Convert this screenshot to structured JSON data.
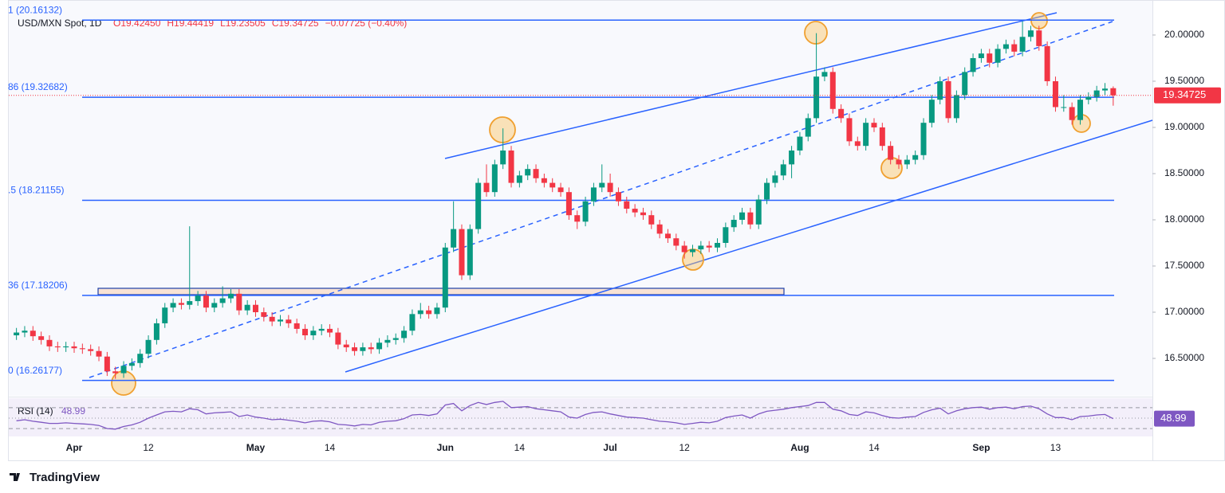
{
  "chart_data": {
    "type": "candlestick",
    "title": "USD/MXN Spot, 1D",
    "legend_labels": [
      "O19.42450",
      "H19.44419",
      "L19.23505",
      "C19.34725",
      "−0.07725 (−0.40%)"
    ],
    "last_price_label": "19.34725",
    "brand": "TradingView",
    "up_color": "#089981",
    "down_color": "#f23645",
    "categories": [
      null,
      null,
      null,
      null,
      null,
      null,
      null,
      "Apr",
      null,
      null,
      null,
      null,
      null,
      null,
      null,
      null,
      "12",
      null,
      null,
      null,
      null,
      null,
      null,
      null,
      null,
      null,
      null,
      null,
      null,
      "May",
      null,
      null,
      null,
      null,
      null,
      null,
      null,
      null,
      "14",
      null,
      null,
      null,
      null,
      null,
      null,
      null,
      null,
      null,
      null,
      null,
      null,
      null,
      "Jun",
      null,
      null,
      null,
      null,
      null,
      null,
      null,
      null,
      "14",
      null,
      null,
      null,
      null,
      null,
      null,
      null,
      null,
      null,
      null,
      "Jul",
      null,
      null,
      null,
      null,
      null,
      null,
      null,
      null,
      "12",
      null,
      null,
      null,
      null,
      null,
      null,
      null,
      null,
      null,
      null,
      null,
      null,
      null,
      "Aug",
      null,
      null,
      null,
      null,
      null,
      null,
      null,
      null,
      "14",
      null,
      null,
      null,
      null,
      null,
      null,
      null,
      null,
      null,
      null,
      null,
      null,
      "Sep",
      null,
      null,
      null,
      null,
      null,
      null,
      null,
      null,
      "13",
      null,
      null,
      null,
      null,
      null,
      null,
      null
    ],
    "open": [
      16.75,
      16.78,
      16.8,
      16.74,
      16.7,
      16.63,
      16.62,
      16.63,
      16.61,
      16.6,
      16.58,
      16.52,
      16.36,
      16.34,
      16.42,
      16.45,
      16.55,
      16.7,
      16.88,
      17.05,
      17.1,
      17.08,
      17.12,
      17.18,
      17.05,
      17.1,
      17.15,
      17.2,
      17.02,
      17.08,
      17.0,
      16.95,
      16.9,
      16.92,
      16.88,
      16.82,
      16.75,
      16.8,
      16.82,
      16.78,
      16.65,
      16.62,
      16.58,
      16.62,
      16.6,
      16.67,
      16.7,
      16.72,
      16.8,
      16.98,
      17.02,
      16.98,
      17.05,
      17.7,
      17.9,
      17.4,
      17.9,
      18.4,
      18.3,
      18.6,
      18.75,
      18.4,
      18.48,
      18.55,
      18.45,
      18.4,
      18.35,
      18.3,
      18.05,
      17.98,
      18.2,
      18.35,
      18.4,
      18.3,
      18.2,
      18.12,
      18.08,
      18.05,
      17.95,
      17.85,
      17.8,
      17.72,
      17.65,
      17.68,
      17.72,
      17.7,
      17.75,
      17.92,
      18.0,
      18.08,
      17.95,
      18.22,
      18.4,
      18.48,
      18.6,
      18.75,
      18.9,
      19.1,
      19.55,
      19.6,
      19.2,
      19.1,
      18.85,
      18.8,
      19.05,
      19.0,
      18.8,
      18.65,
      18.6,
      18.65,
      18.7,
      19.05,
      19.3,
      19.5,
      19.1,
      19.35,
      19.6,
      19.75,
      19.8,
      19.7,
      19.85,
      19.9,
      19.82,
      19.98,
      20.05,
      19.88,
      19.5,
      19.22,
      19.22,
      19.08,
      19.3,
      19.33,
      19.4,
      19.4245
    ],
    "high": [
      16.83,
      16.85,
      16.85,
      16.79,
      16.75,
      16.68,
      16.68,
      16.68,
      16.66,
      16.65,
      16.63,
      16.57,
      16.41,
      16.47,
      16.5,
      16.6,
      16.75,
      16.93,
      17.1,
      17.15,
      17.15,
      17.93,
      17.23,
      17.23,
      17.15,
      17.28,
      17.25,
      17.25,
      17.13,
      17.13,
      17.05,
      17.0,
      16.97,
      16.97,
      16.93,
      16.87,
      16.85,
      16.87,
      16.87,
      16.83,
      16.7,
      16.67,
      16.67,
      16.67,
      16.72,
      16.75,
      16.77,
      16.85,
      17.03,
      17.1,
      17.07,
      17.1,
      17.75,
      18.2,
      17.95,
      17.95,
      18.45,
      18.6,
      18.65,
      18.99,
      18.8,
      18.53,
      18.6,
      18.6,
      18.5,
      18.45,
      18.4,
      18.35,
      18.1,
      18.25,
      18.4,
      18.6,
      18.5,
      18.35,
      18.25,
      18.17,
      18.13,
      18.1,
      18.0,
      17.9,
      17.85,
      17.77,
      17.73,
      17.77,
      17.77,
      17.8,
      17.97,
      18.05,
      18.13,
      18.13,
      18.27,
      18.45,
      18.53,
      18.65,
      18.8,
      18.95,
      19.15,
      20.02,
      19.65,
      19.65,
      19.25,
      19.15,
      18.9,
      19.1,
      19.1,
      19.05,
      18.85,
      18.7,
      18.7,
      18.75,
      19.1,
      19.35,
      19.55,
      19.55,
      19.4,
      19.65,
      19.8,
      19.85,
      19.85,
      19.9,
      19.95,
      19.95,
      20.15,
      20.1,
      20.1,
      19.93,
      19.55,
      19.35,
      19.27,
      19.35,
      19.38,
      19.45,
      19.48,
      19.44419
    ],
    "low": [
      16.7,
      16.73,
      16.69,
      16.65,
      16.58,
      16.57,
      16.57,
      16.56,
      16.55,
      16.53,
      16.47,
      16.31,
      16.28,
      16.29,
      16.37,
      16.4,
      16.5,
      16.65,
      16.83,
      17.0,
      17.03,
      17.03,
      17.07,
      17.0,
      17.0,
      17.05,
      17.1,
      16.97,
      16.97,
      16.95,
      16.9,
      16.85,
      16.85,
      16.83,
      16.77,
      16.7,
      16.7,
      16.75,
      16.73,
      16.6,
      16.57,
      16.53,
      16.53,
      16.55,
      16.55,
      16.62,
      16.65,
      16.67,
      16.75,
      16.93,
      16.93,
      16.93,
      17.0,
      17.65,
      17.35,
      17.35,
      17.85,
      18.25,
      18.25,
      18.55,
      18.35,
      18.35,
      18.43,
      18.4,
      18.35,
      18.3,
      18.25,
      18.0,
      17.9,
      17.93,
      18.15,
      18.3,
      18.25,
      18.15,
      18.07,
      18.03,
      18.0,
      17.9,
      17.8,
      17.75,
      17.67,
      17.58,
      17.6,
      17.63,
      17.65,
      17.65,
      17.7,
      17.87,
      17.95,
      17.9,
      17.9,
      18.17,
      18.35,
      18.43,
      18.45,
      18.7,
      18.85,
      19.05,
      19.5,
      19.15,
      19.05,
      18.8,
      18.75,
      18.75,
      18.95,
      18.75,
      18.6,
      18.55,
      18.55,
      18.6,
      18.65,
      19.0,
      19.25,
      19.05,
      19.05,
      19.3,
      19.55,
      19.7,
      19.65,
      19.65,
      19.8,
      19.77,
      19.77,
      19.93,
      19.83,
      19.45,
      19.17,
      19.17,
      19.03,
      19.03,
      19.25,
      19.28,
      19.35,
      19.23505
    ],
    "close": [
      16.78,
      16.8,
      16.74,
      16.7,
      16.63,
      16.62,
      16.63,
      16.61,
      16.6,
      16.58,
      16.52,
      16.36,
      16.34,
      16.42,
      16.45,
      16.55,
      16.7,
      16.88,
      17.05,
      17.1,
      17.08,
      17.12,
      17.18,
      17.05,
      17.1,
      17.15,
      17.2,
      17.02,
      17.08,
      17.0,
      16.95,
      16.9,
      16.92,
      16.88,
      16.82,
      16.75,
      16.8,
      16.82,
      16.78,
      16.65,
      16.62,
      16.58,
      16.62,
      16.6,
      16.67,
      16.7,
      16.72,
      16.8,
      16.98,
      17.02,
      16.98,
      17.05,
      17.7,
      17.9,
      17.4,
      17.9,
      18.4,
      18.3,
      18.6,
      18.75,
      18.4,
      18.48,
      18.55,
      18.45,
      18.4,
      18.35,
      18.3,
      18.05,
      17.98,
      18.2,
      18.35,
      18.4,
      18.3,
      18.2,
      18.12,
      18.08,
      18.05,
      17.95,
      17.85,
      17.8,
      17.72,
      17.65,
      17.68,
      17.72,
      17.7,
      17.75,
      17.92,
      18.0,
      18.08,
      17.95,
      18.22,
      18.4,
      18.48,
      18.6,
      18.75,
      18.9,
      19.1,
      19.55,
      19.6,
      19.2,
      19.1,
      18.85,
      18.8,
      19.05,
      19.0,
      18.8,
      18.65,
      18.6,
      18.65,
      18.7,
      19.05,
      19.3,
      19.5,
      19.1,
      19.35,
      19.6,
      19.75,
      19.8,
      19.7,
      19.85,
      19.9,
      19.82,
      19.98,
      20.05,
      19.88,
      19.5,
      19.22,
      19.22,
      19.08,
      19.3,
      19.33,
      19.4,
      19.42,
      19.34725
    ],
    "ylim": [
      16.095,
      20.31
    ],
    "yticks": [
      {
        "value": 20,
        "label": "20.00000"
      },
      {
        "value": 19.5,
        "label": "19.50000"
      },
      {
        "value": 19,
        "label": "19.00000"
      },
      {
        "value": 18.5,
        "label": "18.50000"
      },
      {
        "value": 18,
        "label": "18.00000"
      },
      {
        "value": 17.5,
        "label": "17.50000"
      },
      {
        "value": 17,
        "label": "17.00000"
      },
      {
        "value": 16.5,
        "label": "16.50000"
      }
    ],
    "fib_levels": [
      {
        "value": 20.16132,
        "label": "1 (20.16132)"
      },
      {
        "value": 19.32682,
        "label": "86 (19.32682)"
      },
      {
        "value": 18.21155,
        "label": ".5 (18.21155)"
      },
      {
        "value": 17.18206,
        "label": "36 (17.18206)"
      },
      {
        "value": 16.26177,
        "label": "0 (16.26177)"
      }
    ],
    "rsi": {
      "title": "RSI (14)",
      "value_label": "48.99",
      "color": "#7e57c2",
      "ylim": [
        15,
        88
      ],
      "levels": [
        70,
        50,
        30
      ],
      "values": [
        45,
        47,
        44,
        42,
        40,
        40,
        41,
        40,
        39,
        38,
        36,
        30,
        29,
        34,
        37,
        42,
        50,
        56,
        62,
        63,
        62,
        68,
        66,
        58,
        60,
        61,
        62,
        53,
        56,
        52,
        50,
        47,
        48,
        46,
        44,
        41,
        44,
        45,
        43,
        38,
        37,
        35,
        38,
        37,
        42,
        44,
        45,
        49,
        56,
        57,
        55,
        58,
        75,
        78,
        64,
        74,
        80,
        76,
        80,
        82,
        70,
        71,
        72,
        68,
        66,
        64,
        62,
        52,
        50,
        57,
        61,
        62,
        58,
        55,
        52,
        51,
        50,
        47,
        44,
        43,
        41,
        38,
        40,
        42,
        41,
        44,
        51,
        54,
        56,
        50,
        58,
        63,
        65,
        67,
        70,
        72,
        74,
        80,
        80,
        67,
        64,
        57,
        55,
        62,
        60,
        55,
        51,
        50,
        52,
        53,
        61,
        66,
        69,
        58,
        64,
        68,
        70,
        71,
        67,
        70,
        71,
        68,
        72,
        73,
        68,
        58,
        51,
        51,
        47,
        53,
        54,
        56,
        57,
        48.99
      ]
    }
  }
}
